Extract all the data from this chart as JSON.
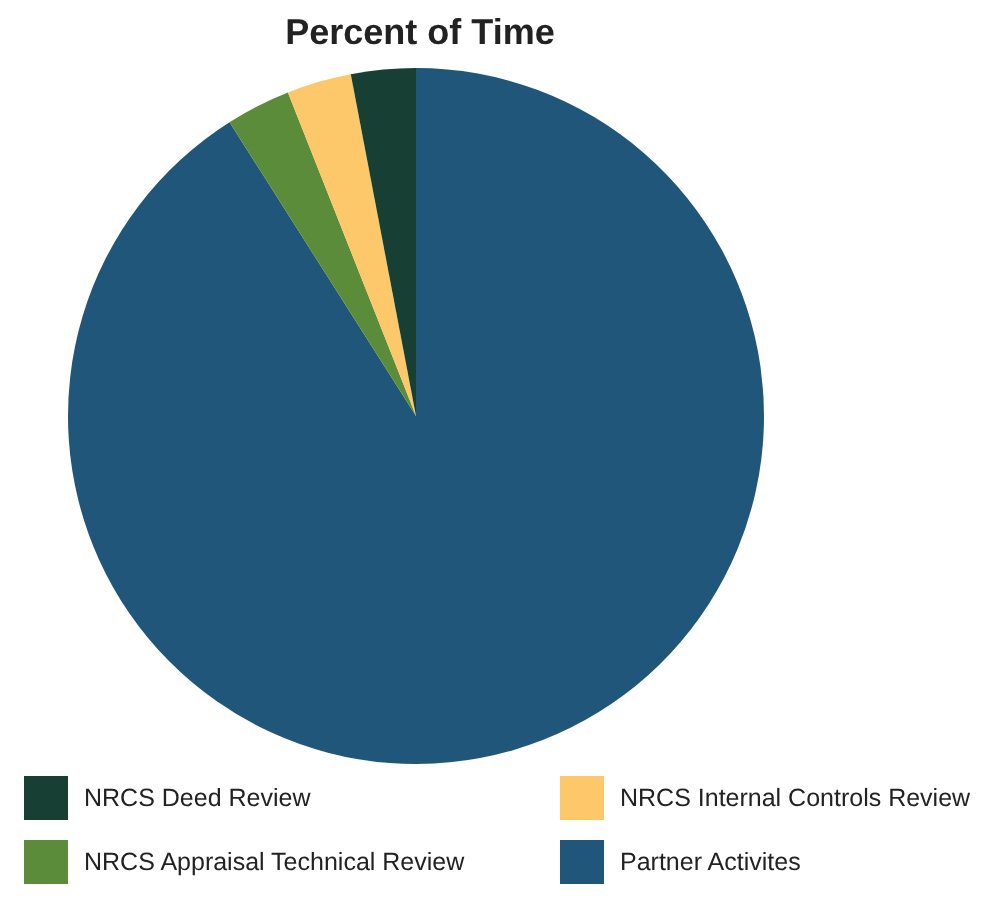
{
  "chart_data": {
    "type": "pie",
    "title": "Percent of Time",
    "categories": [
      "NRCS Deed Review",
      "NRCS Internal Controls Review",
      "NRCS Appraisal Technical Review",
      "Partner Activites"
    ],
    "values": [
      3,
      3,
      3,
      91
    ],
    "colors": [
      "#173f33",
      "#fdc86a",
      "#5b8c3a",
      "#1f5679"
    ],
    "legend": "bottom"
  }
}
